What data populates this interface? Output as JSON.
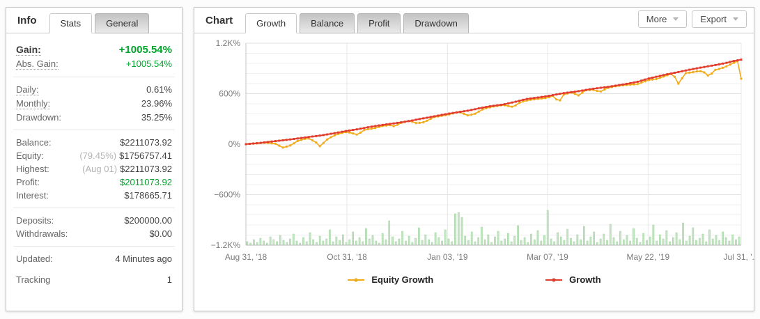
{
  "info": {
    "title": "Info",
    "tabs": [
      {
        "label": "Stats",
        "active": true
      },
      {
        "label": "General",
        "active": false
      }
    ],
    "rows": {
      "gain": {
        "label": "Gain:",
        "value": "+1005.54%"
      },
      "abs_gain": {
        "label": "Abs. Gain:",
        "value": "+1005.54%"
      },
      "daily": {
        "label": "Daily:",
        "value": "0.61%"
      },
      "monthly": {
        "label": "Monthly:",
        "value": "23.96%"
      },
      "drawdown": {
        "label": "Drawdown:",
        "value": "35.25%"
      },
      "balance": {
        "label": "Balance:",
        "value": "$2211073.92"
      },
      "equity": {
        "label": "Equity:",
        "muted": "(79.45%)",
        "value": "$1756757.41"
      },
      "highest": {
        "label": "Highest:",
        "muted": "(Aug 01)",
        "value": "$2211073.92"
      },
      "profit": {
        "label": "Profit:",
        "value": "$2011073.92"
      },
      "interest": {
        "label": "Interest:",
        "value": "$178665.71"
      },
      "deposits": {
        "label": "Deposits:",
        "value": "$200000.00"
      },
      "withdrawals": {
        "label": "Withdrawals:",
        "value": "$0.00"
      },
      "updated": {
        "label": "Updated:",
        "value": "4 Minutes ago"
      },
      "tracking": {
        "label": "Tracking",
        "value": "1"
      }
    },
    "colors": {
      "positive": "#00a32b"
    }
  },
  "chart_panel": {
    "title": "Chart",
    "tabs": [
      {
        "label": "Growth",
        "active": true
      },
      {
        "label": "Balance",
        "active": false
      },
      {
        "label": "Profit",
        "active": false
      },
      {
        "label": "Drawdown",
        "active": false
      }
    ],
    "buttons": {
      "more": "More",
      "export": "Export"
    }
  },
  "chart_data": {
    "type": "line",
    "title": "Growth",
    "legend_position": "bottom",
    "y_axis": {
      "min": -1200,
      "max": 1200,
      "minor_step": 120,
      "unit": "%",
      "ticks": [
        {
          "v": 1200,
          "label": "1.2K%"
        },
        {
          "v": 600,
          "label": "600%"
        },
        {
          "v": 0,
          "label": "0%"
        },
        {
          "v": -600,
          "label": "−600%"
        },
        {
          "v": -1200,
          "label": "−1.2K%"
        }
      ]
    },
    "x_axis": {
      "ticks": [
        {
          "t": 0,
          "label": "Aug 31, '18"
        },
        {
          "t": 0.204,
          "label": "Oct 31, '18"
        },
        {
          "t": 0.407,
          "label": "Jan 03, '19"
        },
        {
          "t": 0.609,
          "label": "Mar 07, '19"
        },
        {
          "t": 0.812,
          "label": "May 22, '19"
        },
        {
          "t": 1,
          "label": "Jul 31, '..."
        }
      ]
    },
    "series": [
      {
        "name": "Equity Growth",
        "color": "#f2ab18",
        "marker": "circle",
        "points": [
          [
            0,
            0
          ],
          [
            0.02,
            8
          ],
          [
            0.04,
            18
          ],
          [
            0.06,
            5
          ],
          [
            0.075,
            -42
          ],
          [
            0.09,
            -15
          ],
          [
            0.105,
            40
          ],
          [
            0.125,
            72
          ],
          [
            0.14,
            30
          ],
          [
            0.15,
            -28
          ],
          [
            0.162,
            48
          ],
          [
            0.175,
            95
          ],
          [
            0.19,
            128
          ],
          [
            0.204,
            146
          ],
          [
            0.215,
            130
          ],
          [
            0.225,
            112
          ],
          [
            0.24,
            172
          ],
          [
            0.26,
            190
          ],
          [
            0.275,
            215
          ],
          [
            0.29,
            228
          ],
          [
            0.3,
            212
          ],
          [
            0.315,
            258
          ],
          [
            0.33,
            278
          ],
          [
            0.345,
            248
          ],
          [
            0.36,
            262
          ],
          [
            0.38,
            322
          ],
          [
            0.407,
            348
          ],
          [
            0.43,
            385
          ],
          [
            0.448,
            342
          ],
          [
            0.462,
            360
          ],
          [
            0.48,
            420
          ],
          [
            0.5,
            448
          ],
          [
            0.52,
            465
          ],
          [
            0.54,
            442
          ],
          [
            0.555,
            502
          ],
          [
            0.575,
            528
          ],
          [
            0.59,
            538
          ],
          [
            0.61,
            552
          ],
          [
            0.622,
            580
          ],
          [
            0.631,
            490
          ],
          [
            0.642,
            592
          ],
          [
            0.658,
            615
          ],
          [
            0.672,
            578
          ],
          [
            0.685,
            640
          ],
          [
            0.7,
            648
          ],
          [
            0.715,
            622
          ],
          [
            0.73,
            668
          ],
          [
            0.75,
            692
          ],
          [
            0.77,
            705
          ],
          [
            0.79,
            712
          ],
          [
            0.813,
            762
          ],
          [
            0.83,
            775
          ],
          [
            0.85,
            818
          ],
          [
            0.862,
            840
          ],
          [
            0.874,
            710
          ],
          [
            0.886,
            842
          ],
          [
            0.9,
            852
          ],
          [
            0.915,
            872
          ],
          [
            0.925,
            855
          ],
          [
            0.935,
            805
          ],
          [
            0.947,
            882
          ],
          [
            0.96,
            900
          ],
          [
            0.97,
            925
          ],
          [
            0.98,
            952
          ],
          [
            0.99,
            980
          ],
          [
            0.996,
            998
          ],
          [
            1,
            778
          ]
        ]
      },
      {
        "name": "Growth",
        "color": "#e23d2c",
        "marker": "square",
        "points": [
          [
            0,
            0
          ],
          [
            0.03,
            16
          ],
          [
            0.05,
            30
          ],
          [
            0.08,
            50
          ],
          [
            0.1,
            64
          ],
          [
            0.13,
            88
          ],
          [
            0.15,
            102
          ],
          [
            0.18,
            132
          ],
          [
            0.204,
            158
          ],
          [
            0.23,
            182
          ],
          [
            0.25,
            205
          ],
          [
            0.28,
            232
          ],
          [
            0.3,
            248
          ],
          [
            0.33,
            275
          ],
          [
            0.35,
            298
          ],
          [
            0.38,
            330
          ],
          [
            0.407,
            360
          ],
          [
            0.43,
            382
          ],
          [
            0.45,
            400
          ],
          [
            0.47,
            425
          ],
          [
            0.49,
            448
          ],
          [
            0.52,
            472
          ],
          [
            0.545,
            505
          ],
          [
            0.565,
            535
          ],
          [
            0.59,
            555
          ],
          [
            0.61,
            572
          ],
          [
            0.64,
            605
          ],
          [
            0.67,
            628
          ],
          [
            0.7,
            658
          ],
          [
            0.73,
            680
          ],
          [
            0.77,
            718
          ],
          [
            0.79,
            740
          ],
          [
            0.813,
            780
          ],
          [
            0.85,
            830
          ],
          [
            0.874,
            858
          ],
          [
            0.9,
            890
          ],
          [
            0.92,
            912
          ],
          [
            0.94,
            932
          ],
          [
            0.955,
            948
          ],
          [
            0.97,
            966
          ],
          [
            0.985,
            988
          ],
          [
            1,
            1005
          ]
        ]
      }
    ],
    "volume_bars": {
      "color": "#c5e5c5",
      "edge_color": "#9bd09b",
      "heights": [
        5,
        3,
        8,
        4,
        10,
        6,
        3,
        12,
        8,
        5,
        14,
        7,
        4,
        9,
        16,
        6,
        3,
        11,
        5,
        18,
        8,
        4,
        13,
        6,
        9,
        22,
        5,
        12,
        7,
        15,
        4,
        8,
        19,
        6,
        11,
        5,
        24,
        9,
        14,
        6,
        3,
        17,
        8,
        35,
        12,
        5,
        9,
        20,
        6,
        13,
        4,
        10,
        25,
        7,
        15,
        8,
        4,
        18,
        11,
        6,
        22,
        9,
        5,
        45,
        47,
        40,
        13,
        7,
        19,
        5,
        11,
        26,
        8,
        15,
        4,
        12,
        20,
        6,
        9,
        17,
        5,
        13,
        28,
        7,
        11,
        4,
        16,
        8,
        21,
        6,
        14,
        50,
        9,
        5,
        18,
        12,
        7,
        23,
        10,
        5,
        15,
        8,
        27,
        6,
        12,
        19,
        4,
        9,
        16,
        7,
        30,
        11,
        5,
        20,
        8,
        14,
        6,
        24,
        10,
        4,
        17,
        7,
        12,
        29,
        6,
        15,
        9,
        21,
        5,
        11,
        18,
        8,
        32,
        6,
        13,
        25,
        7,
        10,
        16,
        5,
        22,
        9,
        14,
        7,
        19,
        11,
        6,
        15,
        8,
        12
      ]
    },
    "grid": {
      "minor_color": "#efefef",
      "major_color": "#e2e2e2",
      "vertical_color": "#e8e8e8",
      "axis_color": "#b6b6b6",
      "tick_text_color": "#7a7a7a"
    }
  }
}
